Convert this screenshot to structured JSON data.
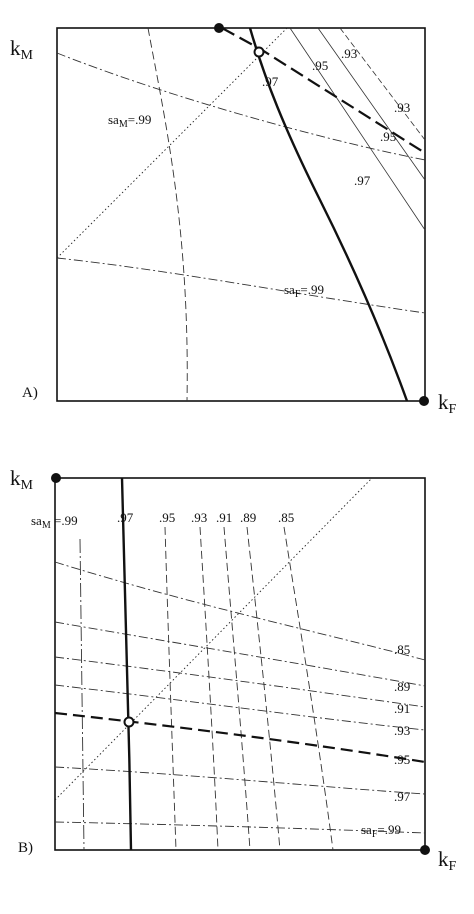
{
  "panel_a": {
    "panel_label": "A)",
    "y_axis": {
      "main": "k",
      "sub": "M"
    },
    "x_axis": {
      "main": "k",
      "sub": "F"
    },
    "labels": {
      "m97": ".97",
      "m95": ".95",
      "m93": ".93",
      "f93": ".93",
      "f95": ".95",
      "f97": ".97",
      "sam_main": "sa",
      "sam_sub": "M",
      "sam_val": "=.99",
      "saf_main": "sa",
      "saf_sub": "F",
      "saf_val": "=.99"
    }
  },
  "panel_b": {
    "panel_label": "B)",
    "y_axis": {
      "main": "k",
      "sub": "M"
    },
    "x_axis": {
      "main": "k",
      "sub": "F"
    },
    "labels": {
      "sam_main": "sa",
      "sam_sub": "M",
      "sam_val": " =.99",
      "m97": ".97",
      "m95": ".95",
      "m93": ".93",
      "m91": ".91",
      "m89": ".89",
      "m85": ".85",
      "f85": ".85",
      "f89": ".89",
      "f91": ".91",
      "f93": ".93",
      "f95": ".95",
      "f97": ".97",
      "saf_main": "sa",
      "saf_sub": "F",
      "saf_val": "=.99"
    }
  }
}
